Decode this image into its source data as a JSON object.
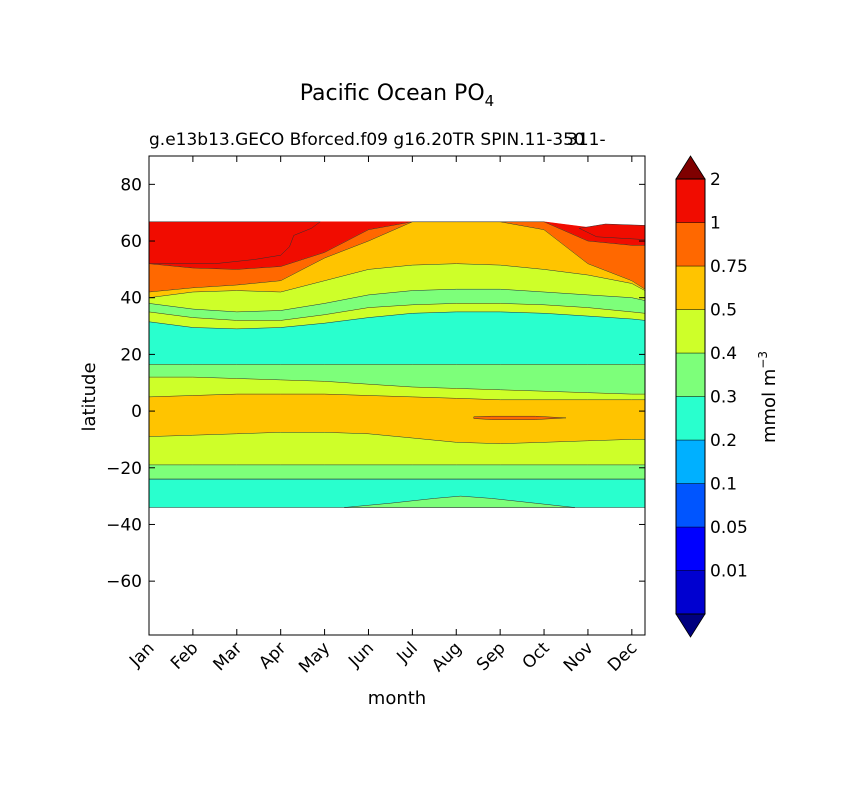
{
  "chart_data": {
    "type": "heatmap",
    "title": "Pacific Ocean PO",
    "title_subscript": "4",
    "subtitle": "g.e13b13.GECO Bforced.f09 g16.20TR SPIN.11-350",
    "subtitle_overlap": "311-",
    "xlabel": "month",
    "ylabel": "latitude",
    "x_ticks": [
      "Jan",
      "Feb",
      "Mar",
      "Apr",
      "May",
      "Jun",
      "Jul",
      "Aug",
      "Sep",
      "Oct",
      "Nov",
      "Dec"
    ],
    "xlim": [
      0,
      11.3
    ],
    "y_ticks": [
      80,
      60,
      40,
      20,
      0,
      -20,
      -40,
      -60
    ],
    "y_tick_labels": [
      "80",
      "60",
      "40",
      "20",
      "0",
      "−20",
      "−40",
      "−60"
    ],
    "ylim": [
      -79,
      90
    ],
    "data_lat_range": [
      -34,
      67
    ],
    "grid": false,
    "colorbar": {
      "label": "mmol m",
      "label_superscript": "−3",
      "tick_labels": [
        "0.01",
        "0.05",
        "0.1",
        "0.2",
        "0.3",
        "0.4",
        "0.5",
        "0.75",
        "1",
        "2"
      ],
      "level_colors": [
        "#00007f",
        "#0000d0",
        "#0000ff",
        "#0055ff",
        "#00b0ff",
        "#29ffce",
        "#7dff7a",
        "#ceff29",
        "#ffc400",
        "#ff6800",
        "#f10c00",
        "#7f0000"
      ],
      "extend": "both"
    },
    "contour_boundaries": [
      {
        "name": "65",
        "lat_at_jan": [
          66.8,
          66.8,
          66.8,
          66.8,
          66.8,
          66.8,
          66.8,
          66.8,
          66.8,
          66.8,
          64.8,
          63.5,
          63.2
        ]
      },
      {
        "name": "60",
        "lat_at_jan": [
          52,
          50.5,
          50,
          51,
          56,
          64,
          66.8,
          66.8,
          66.8,
          66.8,
          60,
          58.5,
          58.5
        ]
      },
      {
        "name": "50",
        "lat_at_jan": [
          42,
          43.5,
          44.5,
          46,
          54,
          60,
          66.8,
          66.8,
          66.8,
          64,
          52,
          46,
          43
        ]
      },
      {
        "name": "45",
        "lat_at_jan": [
          40,
          42,
          42.5,
          42,
          46,
          50,
          51.5,
          52,
          51.5,
          50,
          48,
          45,
          42.5
        ]
      },
      {
        "name": "40",
        "lat_at_jan": [
          38,
          36,
          35,
          35.5,
          38,
          41,
          42.5,
          43,
          43,
          42,
          41,
          40,
          39
        ]
      },
      {
        "name": "37",
        "lat_at_jan": [
          35,
          33,
          32,
          32,
          34,
          36.5,
          37.5,
          38,
          38,
          37.5,
          36.5,
          35,
          34.5
        ]
      },
      {
        "name": "33",
        "lat_at_jan": [
          31.5,
          29.5,
          29,
          29.5,
          31,
          33,
          34.5,
          35,
          35,
          34.5,
          33.5,
          32.5,
          32
        ]
      },
      {
        "name": "17",
        "lat_at_jan": [
          16.5,
          16.5,
          16.5,
          16.5,
          16.5,
          16.5,
          16.5,
          16.5,
          16.5,
          16.5,
          16.5,
          16.5,
          16.5
        ]
      },
      {
        "name": "12",
        "lat_at_jan": [
          12,
          12,
          11.5,
          11,
          10.5,
          9.5,
          8.5,
          8,
          7.5,
          7,
          6.5,
          6,
          6
        ]
      },
      {
        "name": "5",
        "lat_at_jan": [
          5,
          5.5,
          6,
          6,
          6,
          5.5,
          5,
          4.5,
          4,
          4,
          4,
          4,
          4
        ]
      },
      {
        "name": "-9",
        "lat_at_jan": [
          -9,
          -8.5,
          -8,
          -7.5,
          -7.5,
          -8,
          -9.5,
          -11,
          -11.5,
          -11,
          -10.5,
          -10,
          -10
        ]
      },
      {
        "name": "-19",
        "lat_at_jan": [
          -19,
          -19,
          -19,
          -19,
          -19,
          -19,
          -19,
          -19,
          -19,
          -19,
          -19,
          -19,
          -19
        ]
      },
      {
        "name": "-24",
        "lat_at_jan": [
          -24,
          -24,
          -24,
          -24,
          -24,
          -24,
          -24,
          -24,
          -24,
          -24,
          -24,
          -24,
          -24
        ]
      }
    ],
    "regions": [
      {
        "class": 10,
        "from": "65",
        "to": "60"
      },
      {
        "class": 9,
        "from": "60",
        "to": "50"
      },
      {
        "class": 8,
        "from": "50",
        "to": "45"
      },
      {
        "class": 7,
        "from": "45",
        "to": "40"
      },
      {
        "class": 6,
        "from": "40",
        "to": "37"
      },
      {
        "class": 7,
        "from": "37",
        "to": "33"
      },
      {
        "class": 5,
        "from": "33",
        "to": "17"
      },
      {
        "class": 6,
        "from": "17",
        "to": "12"
      },
      {
        "class": 7,
        "from": "12",
        "to": "5"
      },
      {
        "class": 8,
        "from": "5",
        "to": "-9"
      },
      {
        "class": 7,
        "from": "-9",
        "to": "-19"
      },
      {
        "class": 6,
        "from": "-19",
        "to": "-24"
      }
    ],
    "features": [
      {
        "name": "red-cap-west",
        "class": 10,
        "points": [
          [
            0,
            66.8
          ],
          [
            3.9,
            66.8
          ],
          [
            3.7,
            64.5
          ],
          [
            3.3,
            62
          ],
          [
            3.2,
            58
          ],
          [
            3,
            55
          ],
          [
            2.4,
            53.5
          ],
          [
            1.5,
            52
          ],
          [
            0.6,
            52
          ],
          [
            0,
            52
          ]
        ]
      },
      {
        "name": "red-cap-east",
        "class": 10,
        "points": [
          [
            11.3,
            65.5
          ],
          [
            10.4,
            66
          ],
          [
            9.8,
            64.5
          ],
          [
            10.2,
            61.5
          ],
          [
            11.3,
            60.5
          ]
        ]
      },
      {
        "name": "equatorial-orange",
        "class": 9,
        "points": [
          [
            7.4,
            -2
          ],
          [
            7.8,
            -1.8
          ],
          [
            8.8,
            -1.8
          ],
          [
            9.5,
            -2.4
          ],
          [
            8.8,
            -3
          ],
          [
            7.8,
            -3
          ],
          [
            7.4,
            -2.6
          ]
        ]
      },
      {
        "name": "south-teal-band",
        "class": 5,
        "points": [
          [
            0,
            -24
          ],
          [
            11.3,
            -24
          ],
          [
            11.3,
            -34
          ],
          [
            0,
            -34
          ]
        ]
      },
      {
        "name": "south-green-tongue",
        "class": 6,
        "points": [
          [
            4.45,
            -34
          ],
          [
            5.5,
            -32.5
          ],
          [
            6.5,
            -30.8
          ],
          [
            7.1,
            -30
          ],
          [
            7.8,
            -30.8
          ],
          [
            8.8,
            -32.5
          ],
          [
            9.7,
            -34
          ]
        ]
      }
    ]
  }
}
